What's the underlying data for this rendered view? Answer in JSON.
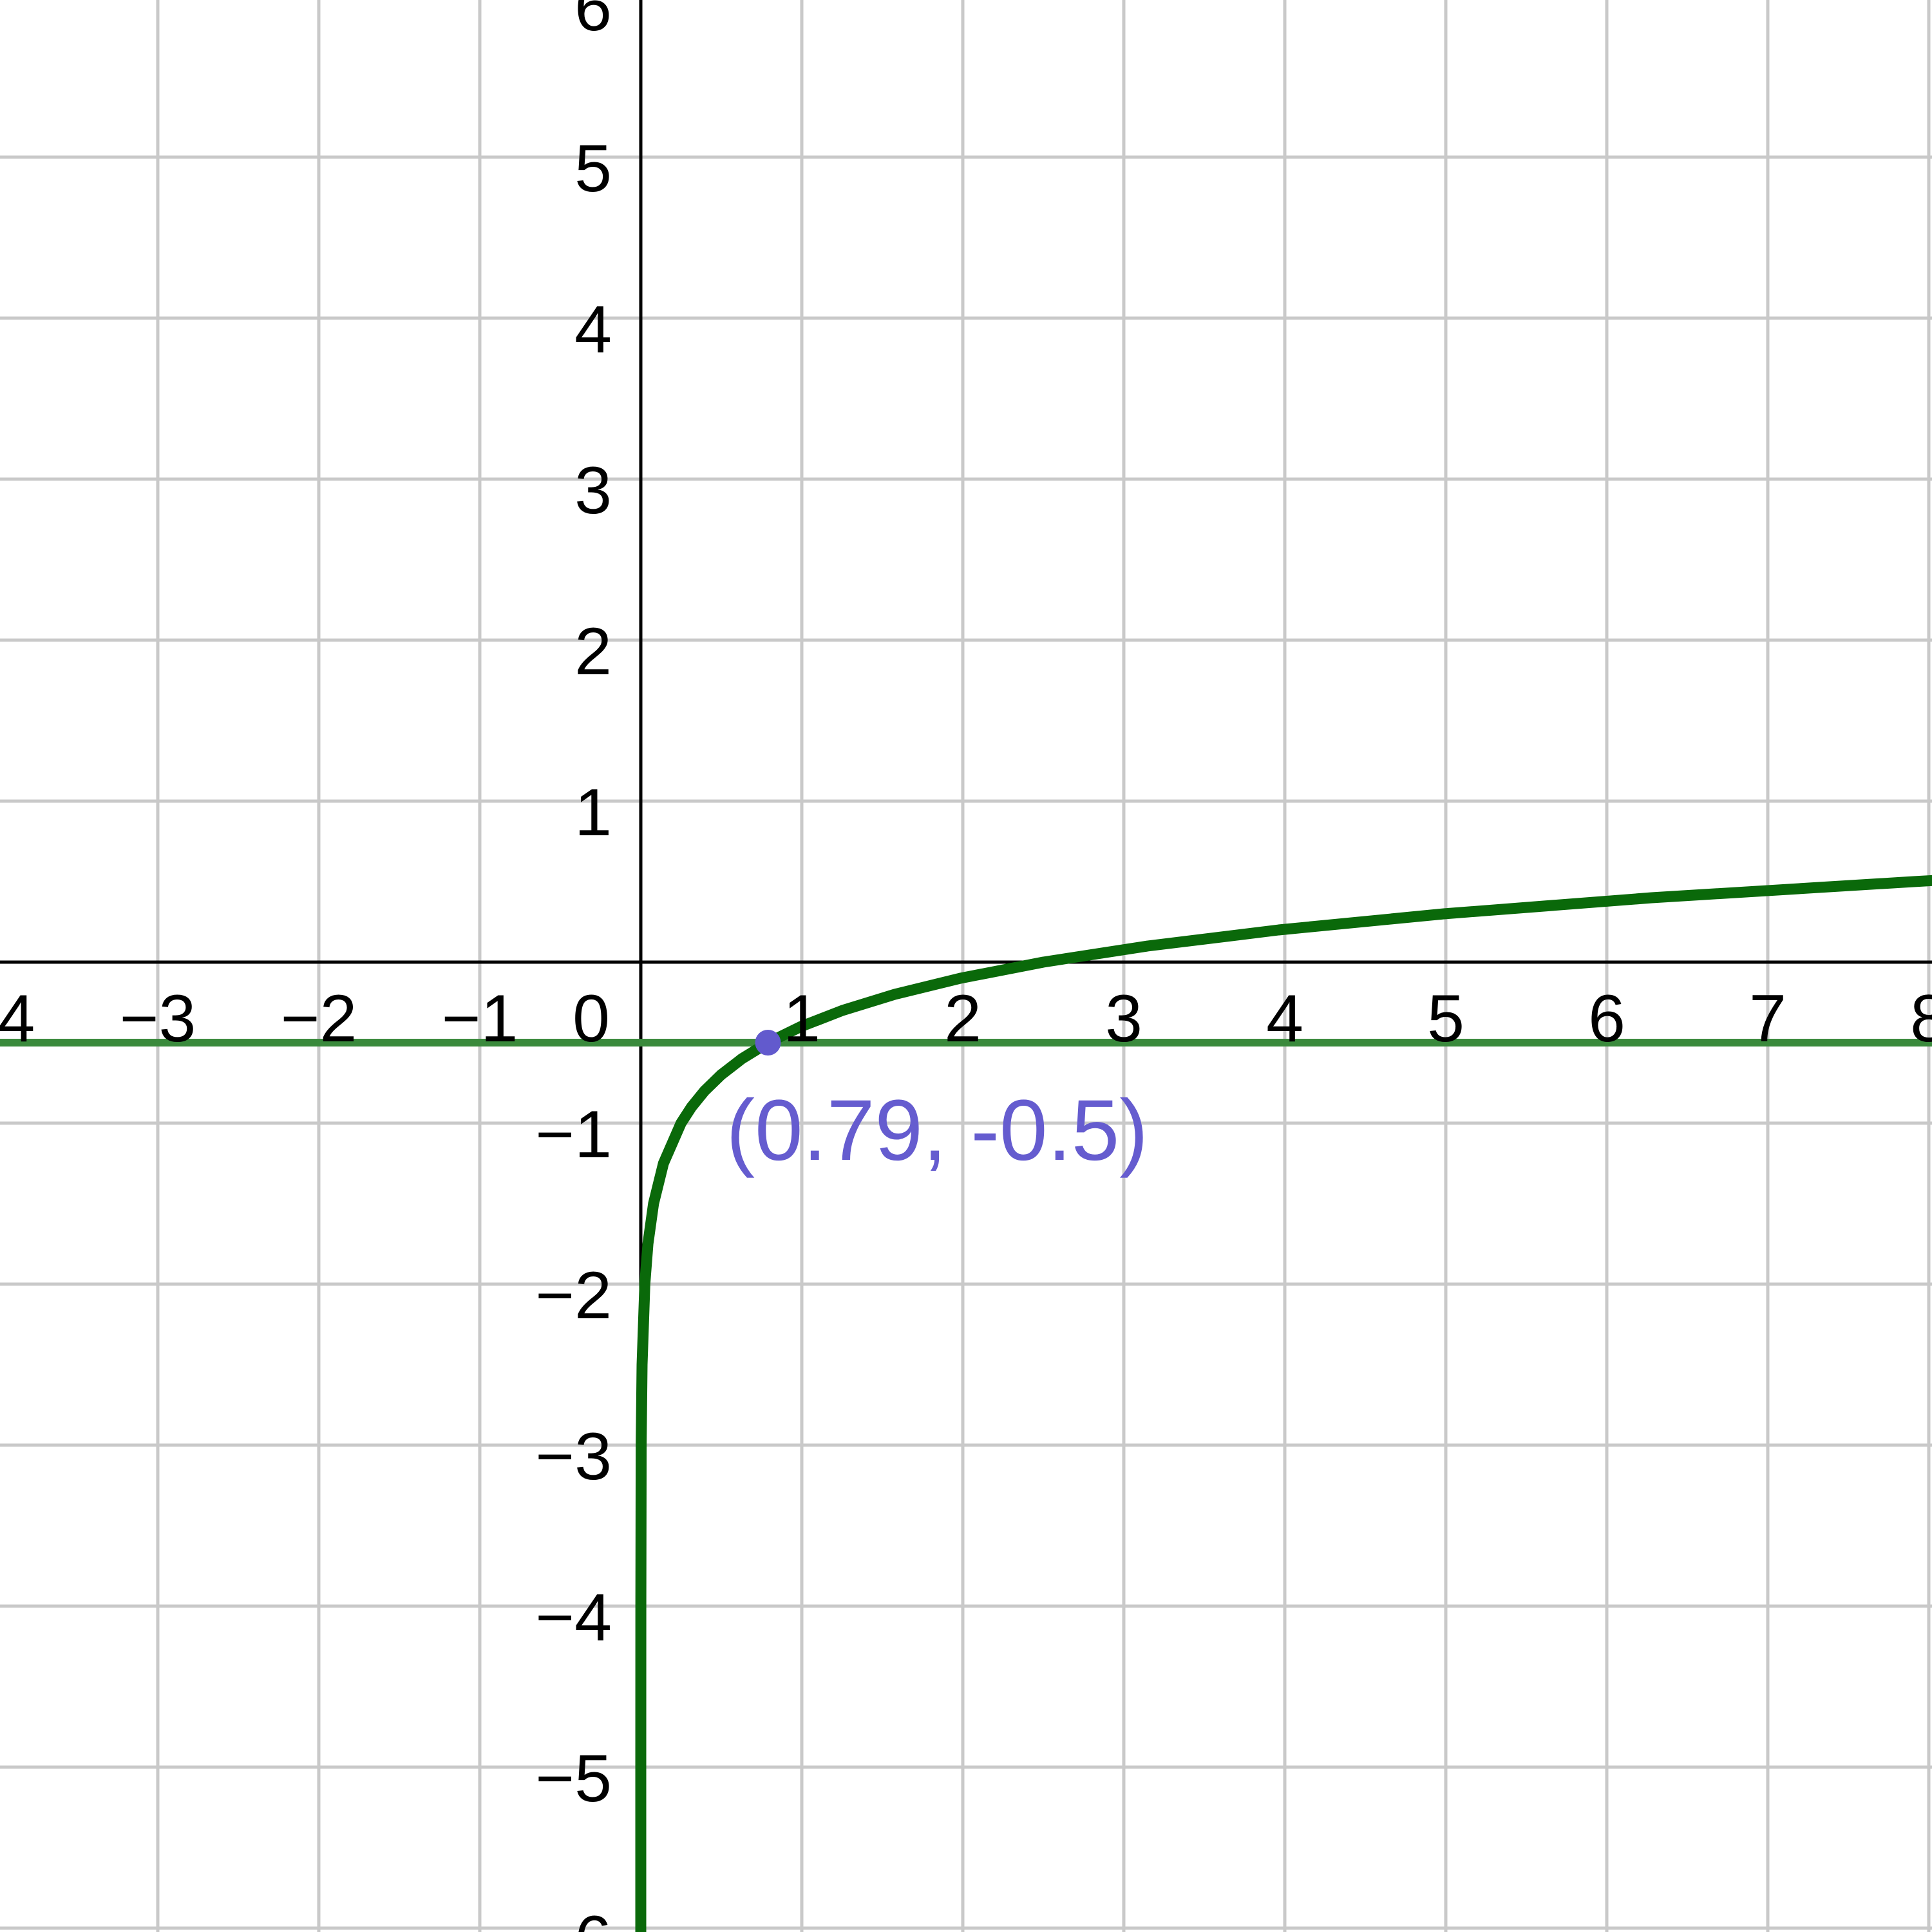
{
  "chart_data": {
    "type": "line",
    "title": "",
    "description": "Graph of a logarithmic curve and a horizontal line intersecting at a marked point",
    "x_axis": {
      "min": -3.98,
      "max": 8.02,
      "tick_step": 1,
      "tick_values": [
        -4,
        -3,
        -2,
        -1,
        0,
        1,
        2,
        3,
        4,
        5,
        6,
        7,
        8
      ],
      "tick_labels": [
        "−4",
        "−3",
        "−2",
        "−1",
        "0",
        "1",
        "2",
        "3",
        "4",
        "5",
        "6",
        "7",
        "8"
      ]
    },
    "y_axis": {
      "min": -6.02,
      "max": 6.02,
      "tick_step": 1,
      "tick_values": [
        6,
        5,
        4,
        3,
        2,
        1,
        -1,
        -2,
        -3,
        -4,
        -5,
        -6
      ],
      "tick_labels": [
        "6",
        "5",
        "4",
        "3",
        "2",
        "1",
        "−1",
        "−2",
        "−3",
        "−4",
        "−5",
        "−6"
      ]
    },
    "grid": {
      "show": true,
      "step": 1,
      "color": "#c9c9c9"
    },
    "axis_color": "#000000",
    "series": [
      {
        "name": "logarithmic-curve",
        "expression": "y = log10(x / 2.5)",
        "color": "#0a690a",
        "stroke_width": 17,
        "points": [
          [
            2.5e-06,
            -6.05
          ],
          [
            2.5e-05,
            -5
          ],
          [
            0.00025,
            -4
          ],
          [
            0.0025,
            -3
          ],
          [
            0.0079,
            -2.5
          ],
          [
            0.025,
            -2
          ],
          [
            0.0445,
            -1.75
          ],
          [
            0.079,
            -1.5
          ],
          [
            0.1406,
            -1.25
          ],
          [
            0.25,
            -1
          ],
          [
            0.3148,
            -0.9
          ],
          [
            0.3962,
            -0.8
          ],
          [
            0.4988,
            -0.7
          ],
          [
            0.6279,
            -0.6
          ],
          [
            0.7906,
            -0.5
          ],
          [
            0.9953,
            -0.4
          ],
          [
            1.2529,
            -0.3
          ],
          [
            1.5773,
            -0.2
          ],
          [
            1.9855,
            -0.1
          ],
          [
            2.5,
            0
          ],
          [
            3.1471,
            0.1
          ],
          [
            3.9622,
            0.2
          ],
          [
            4.9881,
            0.3
          ],
          [
            6.2791,
            0.4
          ],
          [
            7.9057,
            0.5
          ],
          [
            8.1,
            0.5106
          ]
        ]
      },
      {
        "name": "horizontal-line",
        "expression": "y = -0.5",
        "color": "#3a8a3c",
        "stroke_width": 12,
        "points": [
          [
            -4.05,
            -0.5
          ],
          [
            8.1,
            -0.5
          ]
        ]
      }
    ],
    "intersection_point": {
      "x": 0.79,
      "y": -0.5,
      "label": "(0.79, -0.5)",
      "point_color": "#625acd",
      "label_color": "#655ccf",
      "radius_px": 20
    }
  }
}
